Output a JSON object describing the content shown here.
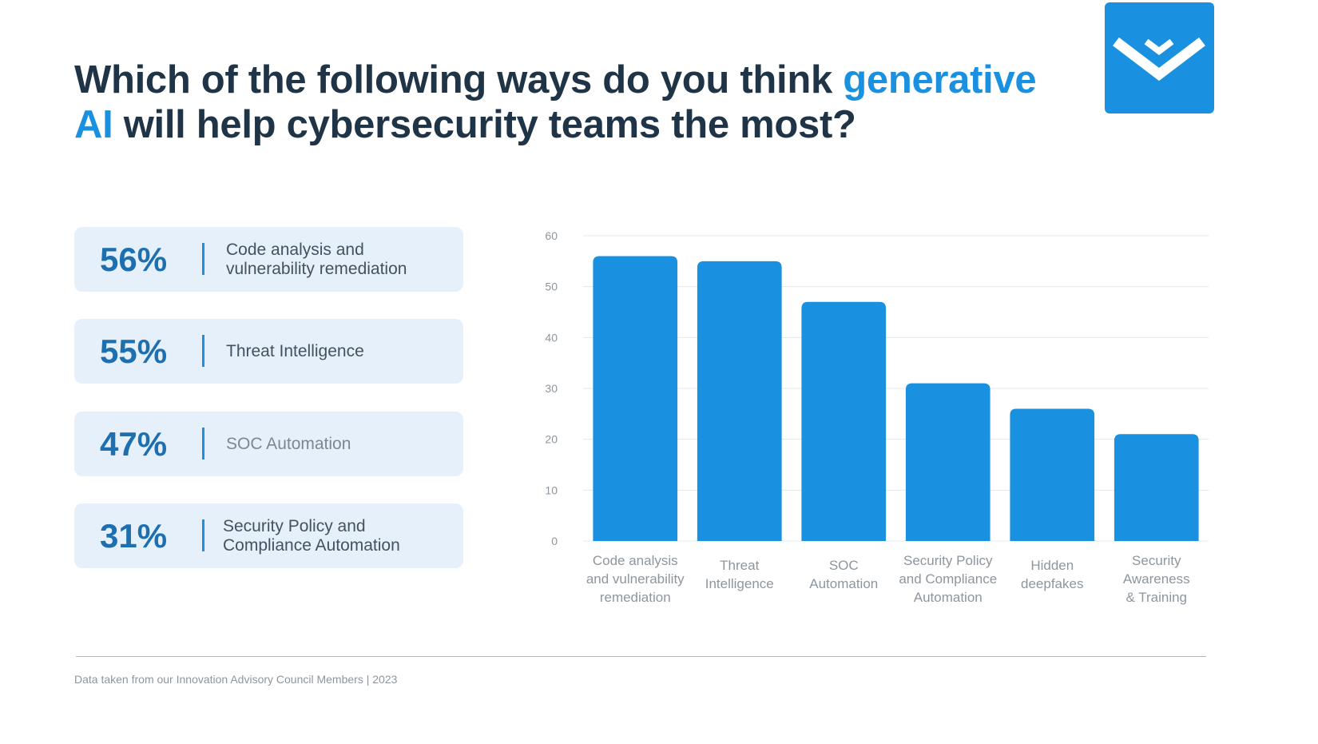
{
  "title": {
    "part1": "Which of the following ways do you think ",
    "highlight": "generative AI",
    "part2": " will help cybersecurity teams the most?"
  },
  "logo_icon": "chevron-logo-icon",
  "colors": {
    "accent": "#1a91e0",
    "title": "#1f3547",
    "card_bg": "#e6f0fb",
    "pct": "#1d6fb0"
  },
  "highlights": [
    {
      "percent": "56%",
      "label": "Code analysis and vulnerability remediation"
    },
    {
      "percent": "55%",
      "label": "Threat Intelligence"
    },
    {
      "percent": "47%",
      "label": "SOC Automation"
    },
    {
      "percent": "31%",
      "label": "Security Policy and Compliance Automation"
    }
  ],
  "chart_data": {
    "type": "bar",
    "categories": [
      [
        "Code analysis",
        "and vulnerability",
        "remediation"
      ],
      [
        "Threat",
        "Intelligence"
      ],
      [
        "SOC",
        "Automation"
      ],
      [
        "Security Policy",
        "and Compliance",
        "Automation"
      ],
      [
        "Hidden",
        "deepfakes"
      ],
      [
        "Security",
        "Awareness",
        "& Training"
      ]
    ],
    "values": [
      56,
      55,
      47,
      31,
      26,
      21
    ],
    "ylim": [
      0,
      60
    ],
    "yticks": [
      0,
      10,
      20,
      30,
      40,
      50,
      60
    ],
    "grid": true,
    "color": "#1a91e0"
  },
  "footer": "Data taken from our Innovation Advisory Council Members | 2023"
}
